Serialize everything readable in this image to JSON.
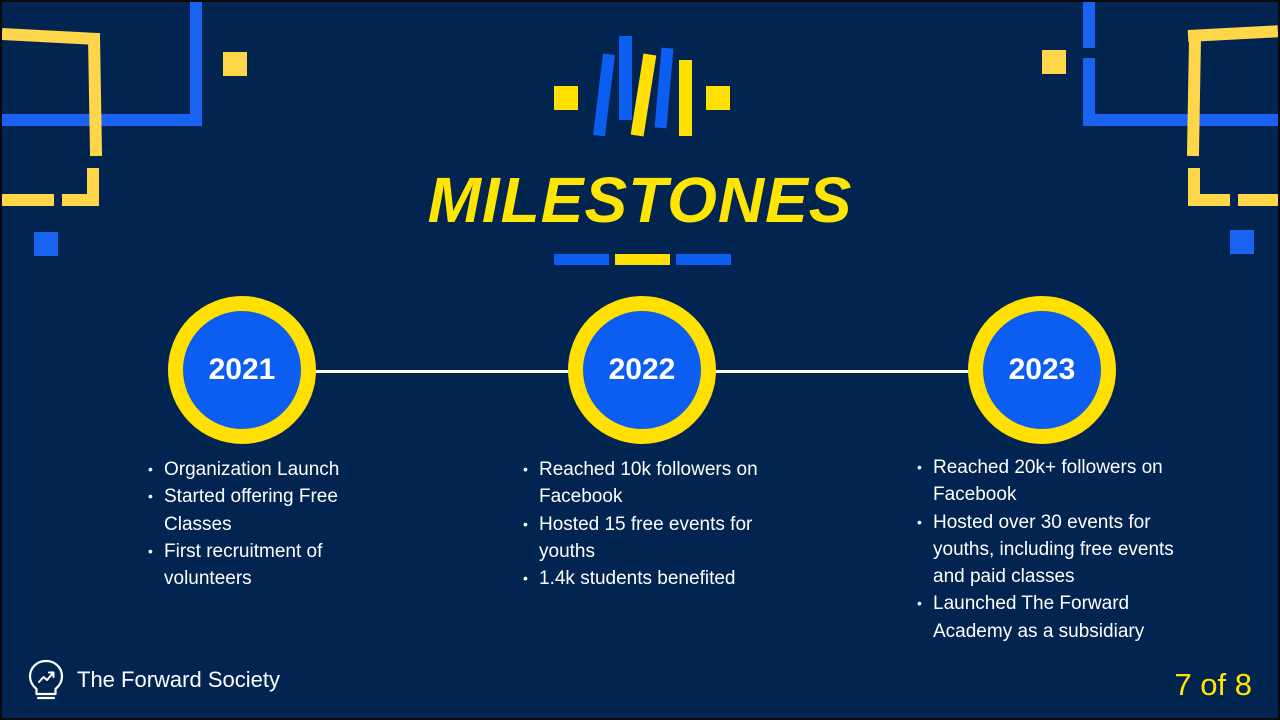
{
  "slide": {
    "title": "MILESTONES",
    "milestones": [
      {
        "year": "2021",
        "items": [
          "Organization Launch",
          "Started offering Free Classes",
          "First recruitment of volunteers"
        ]
      },
      {
        "year": "2022",
        "items": [
          "Reached 10k followers on Facebook",
          "Hosted 15 free events for youths",
          "1.4k students benefited"
        ]
      },
      {
        "year": "2023",
        "items": [
          "Reached 20k+ followers on Facebook",
          "Hosted over 30 events for youths, including free events and paid classes",
          "Launched The Forward Academy as a subsidiary"
        ]
      }
    ]
  },
  "footer": {
    "logo_icon": "lightbulb-growth-icon",
    "org_name": "The Forward Society",
    "page_number": "7 of 8"
  },
  "colors": {
    "background": "#012450",
    "accent_yellow": "#ffe000",
    "accent_blue": "#0b5ef0"
  }
}
